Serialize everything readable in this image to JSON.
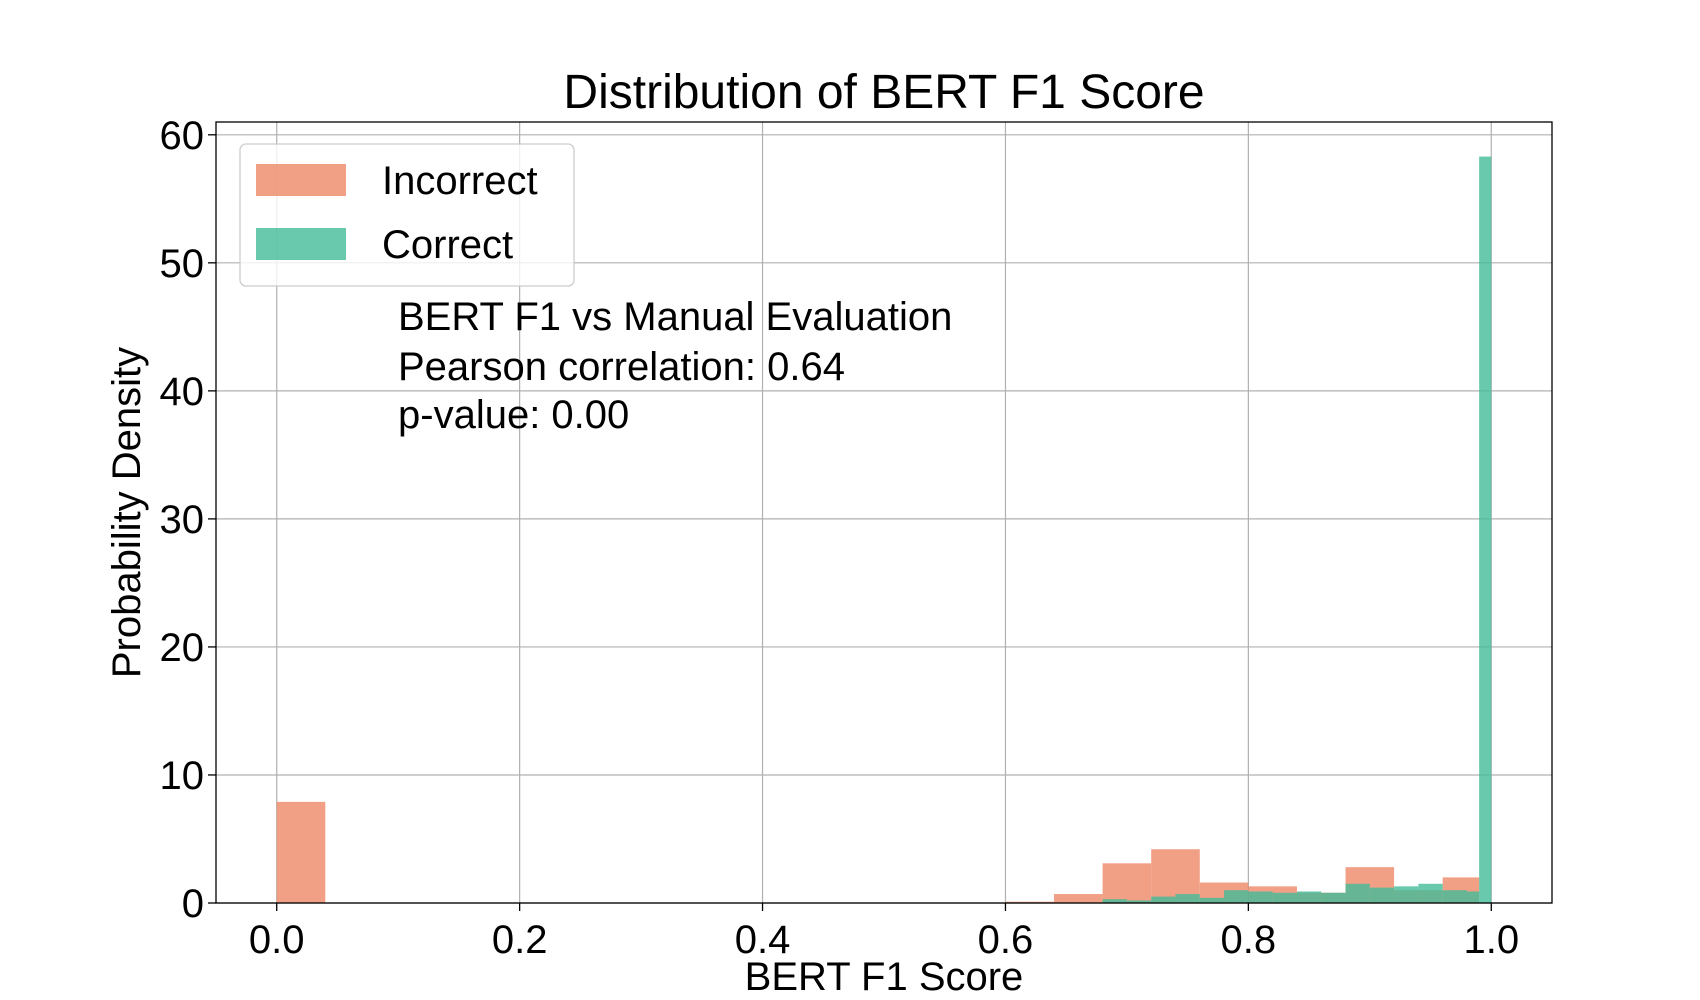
{
  "chart_data": {
    "type": "bar",
    "title": "Distribution of BERT F1 Score",
    "xlabel": "BERT F1 Score",
    "ylabel": "Probability Density",
    "xlim": [
      -0.05,
      1.05
    ],
    "ylim": [
      0,
      61
    ],
    "xticks": [
      "0.0",
      "0.2",
      "0.4",
      "0.6",
      "0.8",
      "1.0"
    ],
    "yticks": [
      "0",
      "10",
      "20",
      "30",
      "40",
      "50",
      "60"
    ],
    "grid": true,
    "legend_position": "top-left",
    "annotation": [
      "BERT F1 vs Manual Evaluation",
      "Pearson correlation: 0.64",
      "p-value: 0.00"
    ],
    "series": [
      {
        "name": "Incorrect",
        "color": "#ee8866",
        "opacity": 0.8,
        "bins": [
          {
            "x0": 0.0,
            "x1": 0.04,
            "y": 7.9
          },
          {
            "x0": 0.6,
            "x1": 0.64,
            "y": 0.1
          },
          {
            "x0": 0.64,
            "x1": 0.68,
            "y": 0.7
          },
          {
            "x0": 0.68,
            "x1": 0.72,
            "y": 3.1
          },
          {
            "x0": 0.72,
            "x1": 0.76,
            "y": 4.2
          },
          {
            "x0": 0.76,
            "x1": 0.8,
            "y": 1.6
          },
          {
            "x0": 0.8,
            "x1": 0.84,
            "y": 1.3
          },
          {
            "x0": 0.84,
            "x1": 0.88,
            "y": 0.8
          },
          {
            "x0": 0.88,
            "x1": 0.92,
            "y": 2.8
          },
          {
            "x0": 0.92,
            "x1": 0.96,
            "y": 1.0
          },
          {
            "x0": 0.96,
            "x1": 0.99,
            "y": 2.0
          }
        ]
      },
      {
        "name": "Correct",
        "color": "#44bb99",
        "opacity": 0.8,
        "bins": [
          {
            "x0": 0.68,
            "x1": 0.7,
            "y": 0.3
          },
          {
            "x0": 0.7,
            "x1": 0.72,
            "y": 0.2
          },
          {
            "x0": 0.72,
            "x1": 0.74,
            "y": 0.5
          },
          {
            "x0": 0.74,
            "x1": 0.76,
            "y": 0.7
          },
          {
            "x0": 0.76,
            "x1": 0.78,
            "y": 0.4
          },
          {
            "x0": 0.78,
            "x1": 0.8,
            "y": 1.0
          },
          {
            "x0": 0.8,
            "x1": 0.82,
            "y": 0.9
          },
          {
            "x0": 0.82,
            "x1": 0.84,
            "y": 0.8
          },
          {
            "x0": 0.84,
            "x1": 0.86,
            "y": 0.9
          },
          {
            "x0": 0.86,
            "x1": 0.88,
            "y": 0.8
          },
          {
            "x0": 0.88,
            "x1": 0.9,
            "y": 1.5
          },
          {
            "x0": 0.9,
            "x1": 0.92,
            "y": 1.2
          },
          {
            "x0": 0.92,
            "x1": 0.94,
            "y": 1.3
          },
          {
            "x0": 0.94,
            "x1": 0.96,
            "y": 1.5
          },
          {
            "x0": 0.96,
            "x1": 0.98,
            "y": 1.0
          },
          {
            "x0": 0.98,
            "x1": 0.99,
            "y": 0.9
          },
          {
            "x0": 0.99,
            "x1": 1.0,
            "y": 58.3
          }
        ]
      }
    ]
  }
}
